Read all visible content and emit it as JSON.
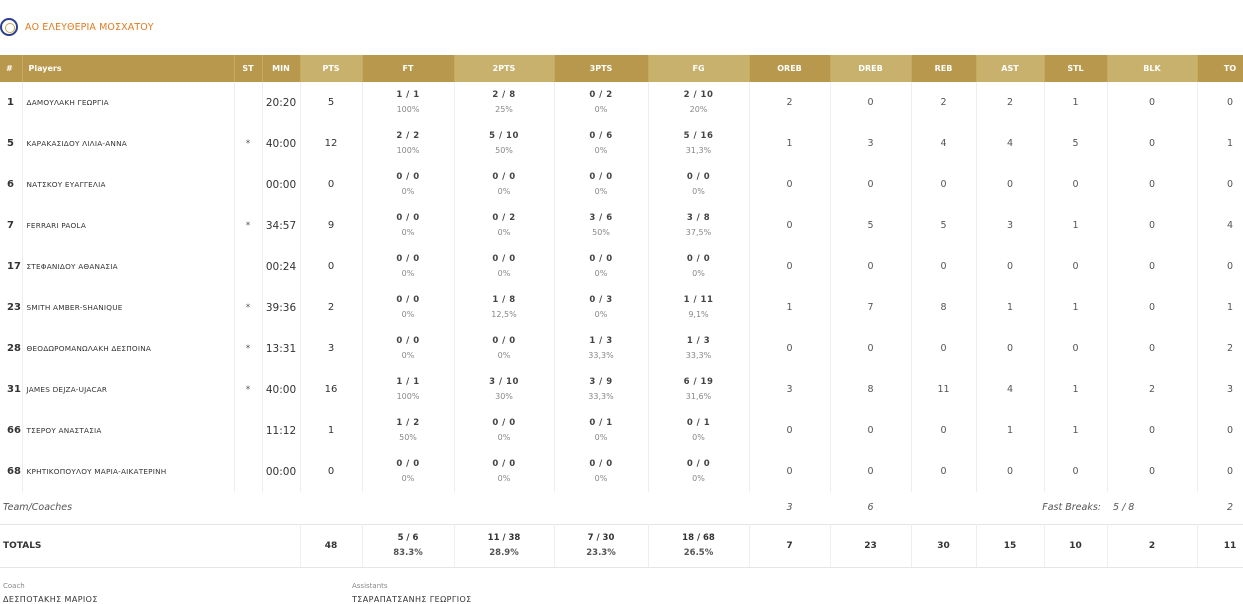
{
  "team": {
    "name": "ΑΟ ΕΛΕΥΘΕΡΙΑ ΜΟΣΧΑΤΟΥ"
  },
  "columns": [
    "#",
    "Players",
    "ST",
    "MIN",
    "PTS",
    "FT",
    "2PTS",
    "3PTS",
    "FG",
    "OREB",
    "DREB",
    "REB",
    "AST",
    "STL",
    "BLK",
    "TO"
  ],
  "players": [
    {
      "num": "1",
      "name": "ΔΑΜΟΥΛΑΚΗ ΓΕΩΡΓΙΑ",
      "st": "",
      "min": "20:20",
      "pts": "5",
      "ft": "1 / 1",
      "ft_pct": "100%",
      "p2": "2 / 8",
      "p2_pct": "25%",
      "p3": "0 / 2",
      "p3_pct": "0%",
      "fg": "2 / 10",
      "fg_pct": "20%",
      "oreb": "2",
      "dreb": "0",
      "reb": "2",
      "ast": "2",
      "stl": "1",
      "blk": "0",
      "to": "0"
    },
    {
      "num": "5",
      "name": "ΚΑΡΑΚΑΣΙΔΟΥ ΛΙΛΙΑ-ΑΝΝΑ",
      "st": "*",
      "min": "40:00",
      "pts": "12",
      "ft": "2 / 2",
      "ft_pct": "100%",
      "p2": "5 / 10",
      "p2_pct": "50%",
      "p3": "0 / 6",
      "p3_pct": "0%",
      "fg": "5 / 16",
      "fg_pct": "31,3%",
      "oreb": "1",
      "dreb": "3",
      "reb": "4",
      "ast": "4",
      "stl": "5",
      "blk": "0",
      "to": "1"
    },
    {
      "num": "6",
      "name": "ΝΑΤΣΚΟΥ ΕΥΑΓΓΕΛΙΑ",
      "st": "",
      "min": "00:00",
      "pts": "0",
      "ft": "0 / 0",
      "ft_pct": "0%",
      "p2": "0 / 0",
      "p2_pct": "0%",
      "p3": "0 / 0",
      "p3_pct": "0%",
      "fg": "0 / 0",
      "fg_pct": "0%",
      "oreb": "0",
      "dreb": "0",
      "reb": "0",
      "ast": "0",
      "stl": "0",
      "blk": "0",
      "to": "0"
    },
    {
      "num": "7",
      "name": "FERRARI PAOLA",
      "st": "*",
      "min": "34:57",
      "pts": "9",
      "ft": "0 / 0",
      "ft_pct": "0%",
      "p2": "0 / 2",
      "p2_pct": "0%",
      "p3": "3 / 6",
      "p3_pct": "50%",
      "fg": "3 / 8",
      "fg_pct": "37,5%",
      "oreb": "0",
      "dreb": "5",
      "reb": "5",
      "ast": "3",
      "stl": "1",
      "blk": "0",
      "to": "4"
    },
    {
      "num": "17",
      "name": "ΣΤΕΦΑΝΙΔΟΥ ΑΘΑΝΑΣΙΑ",
      "st": "",
      "min": "00:24",
      "pts": "0",
      "ft": "0 / 0",
      "ft_pct": "0%",
      "p2": "0 / 0",
      "p2_pct": "0%",
      "p3": "0 / 0",
      "p3_pct": "0%",
      "fg": "0 / 0",
      "fg_pct": "0%",
      "oreb": "0",
      "dreb": "0",
      "reb": "0",
      "ast": "0",
      "stl": "0",
      "blk": "0",
      "to": "0"
    },
    {
      "num": "23",
      "name": "SMITH AMBER-SHANIQUE",
      "st": "*",
      "min": "39:36",
      "pts": "2",
      "ft": "0 / 0",
      "ft_pct": "0%",
      "p2": "1 / 8",
      "p2_pct": "12,5%",
      "p3": "0 / 3",
      "p3_pct": "0%",
      "fg": "1 / 11",
      "fg_pct": "9,1%",
      "oreb": "1",
      "dreb": "7",
      "reb": "8",
      "ast": "1",
      "stl": "1",
      "blk": "0",
      "to": "1"
    },
    {
      "num": "28",
      "name": "ΘΕΟΔΩΡΟΜΑΝΩΛΑΚΗ ΔΕΣΠΟΙΝΑ",
      "st": "*",
      "min": "13:31",
      "pts": "3",
      "ft": "0 / 0",
      "ft_pct": "0%",
      "p2": "0 / 0",
      "p2_pct": "0%",
      "p3": "1 / 3",
      "p3_pct": "33,3%",
      "fg": "1 / 3",
      "fg_pct": "33,3%",
      "oreb": "0",
      "dreb": "0",
      "reb": "0",
      "ast": "0",
      "stl": "0",
      "blk": "0",
      "to": "2"
    },
    {
      "num": "31",
      "name": "JAMES DEJZA-UJACAR",
      "st": "*",
      "min": "40:00",
      "pts": "16",
      "ft": "1 / 1",
      "ft_pct": "100%",
      "p2": "3 / 10",
      "p2_pct": "30%",
      "p3": "3 / 9",
      "p3_pct": "33,3%",
      "fg": "6 / 19",
      "fg_pct": "31,6%",
      "oreb": "3",
      "dreb": "8",
      "reb": "11",
      "ast": "4",
      "stl": "1",
      "blk": "2",
      "to": "3"
    },
    {
      "num": "66",
      "name": "ΤΣΕΡΟΥ ΑΝΑΣΤΑΣΙΑ",
      "st": "",
      "min": "11:12",
      "pts": "1",
      "ft": "1 / 2",
      "ft_pct": "50%",
      "p2": "0 / 0",
      "p2_pct": "0%",
      "p3": "0 / 1",
      "p3_pct": "0%",
      "fg": "0 / 1",
      "fg_pct": "0%",
      "oreb": "0",
      "dreb": "0",
      "reb": "0",
      "ast": "1",
      "stl": "1",
      "blk": "0",
      "to": "0"
    },
    {
      "num": "68",
      "name": "ΚΡΗΤΙΚΟΠΟΥΛΟΥ ΜΑΡΙΑ-ΑΙΚΑΤΕΡΙΝΗ",
      "st": "",
      "min": "00:00",
      "pts": "0",
      "ft": "0 / 0",
      "ft_pct": "0%",
      "p2": "0 / 0",
      "p2_pct": "0%",
      "p3": "0 / 0",
      "p3_pct": "0%",
      "fg": "0 / 0",
      "fg_pct": "0%",
      "oreb": "0",
      "dreb": "0",
      "reb": "0",
      "ast": "0",
      "stl": "0",
      "blk": "0",
      "to": "0"
    }
  ],
  "team_coaches": {
    "label": "Team/Coaches",
    "oreb": "3",
    "dreb": "6",
    "fast_breaks_label": "Fast Breaks:",
    "fast_breaks": "5 / 8",
    "to": "2"
  },
  "totals": {
    "label": "TOTALS",
    "pts": "48",
    "ft": "5 / 6",
    "ft_pct": "83.3%",
    "p2": "11 / 38",
    "p2_pct": "28.9%",
    "p3": "7 / 30",
    "p3_pct": "23.3%",
    "fg": "18 / 68",
    "fg_pct": "26.5%",
    "oreb": "7",
    "dreb": "23",
    "reb": "30",
    "ast": "15",
    "stl": "10",
    "blk": "2",
    "to": "11"
  },
  "staff": {
    "coach_label": "Coach",
    "coach": "ΔΕΣΠΟΤΑΚΗΣ ΜΑΡΙΟΣ",
    "assistants_label": "Assistants",
    "assistants": "ΤΣΑΡΑΠΑΤΣΑΝΗΣ ΓΕΩΡΓΙΟΣ"
  },
  "colors": {
    "header_gold": "#b8984c",
    "header_gold_alt": "#c8b06d",
    "team_name": "#e07a1f"
  }
}
